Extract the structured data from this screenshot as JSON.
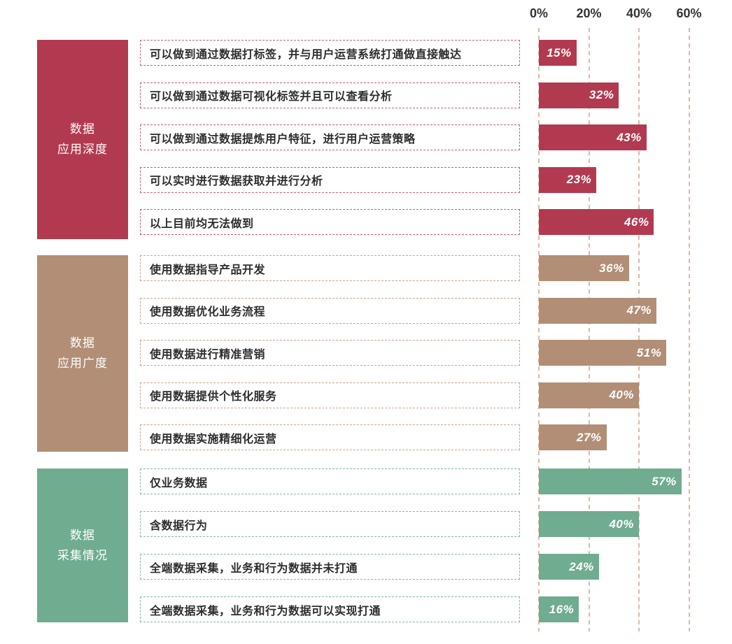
{
  "chart_data": {
    "type": "bar",
    "orientation": "horizontal",
    "unit": "%",
    "xlim": [
      0,
      60
    ],
    "x_tick_values": [
      0,
      20,
      40,
      60
    ],
    "x_tick_labels": [
      "0%",
      "20%",
      "40%",
      "60%"
    ],
    "grid": "dashed-vertical",
    "value_labels": "inside-bar-right",
    "groups": [
      {
        "name": "数据应用深度",
        "name_lines": [
          "数据",
          "应用深度"
        ],
        "color": "#b23a50",
        "border_color": "#d05a72",
        "items": [
          {
            "label": "可以做到通过数据打标签，并与用户运营系统打通做直接触达",
            "value": 15,
            "display": "15%"
          },
          {
            "label": "可以做到通过数据可视化标签并且可以查看分析",
            "value": 32,
            "display": "32%"
          },
          {
            "label": "可以做到通过数据提炼用户特征，进行用户运营策略",
            "value": 43,
            "display": "43%"
          },
          {
            "label": "可以实时进行数据获取并进行分析",
            "value": 23,
            "display": "23%"
          },
          {
            "label": "以上目前均无法做到",
            "value": 46,
            "display": "46%"
          }
        ]
      },
      {
        "name": "数据应用广度",
        "name_lines": [
          "数据",
          "应用广度"
        ],
        "color": "#b18e75",
        "border_color": "#caa48b",
        "items": [
          {
            "label": "使用数据指导产品开发",
            "value": 36,
            "display": "36%"
          },
          {
            "label": "使用数据优化业务流程",
            "value": 47,
            "display": "47%"
          },
          {
            "label": "使用数据进行精准营销",
            "value": 51,
            "display": "51%"
          },
          {
            "label": "使用数据提供个性化服务",
            "value": 40,
            "display": "40%"
          },
          {
            "label": "使用数据实施精细化运营",
            "value": 27,
            "display": "27%"
          }
        ]
      },
      {
        "name": "数据采集情况",
        "name_lines": [
          "数据",
          "采集情况"
        ],
        "color": "#6fac90",
        "border_color": "#82b9a0",
        "items": [
          {
            "label": "仅业务数据",
            "value": 57,
            "display": "57%"
          },
          {
            "label": "含数据行为",
            "value": 40,
            "display": "40%"
          },
          {
            "label": "全端数据采集，业务和行为数据并未打通",
            "value": 24,
            "display": "24%"
          },
          {
            "label": "全端数据采集，业务和行为数据可以实现打通",
            "value": 16,
            "display": "16%"
          }
        ]
      }
    ]
  },
  "colors": {
    "background": "#ffffff",
    "gridline": "#dcb9a4",
    "axis_text": "#333333",
    "label_text": "#2d2d2d",
    "value_text": "#ffffff"
  }
}
